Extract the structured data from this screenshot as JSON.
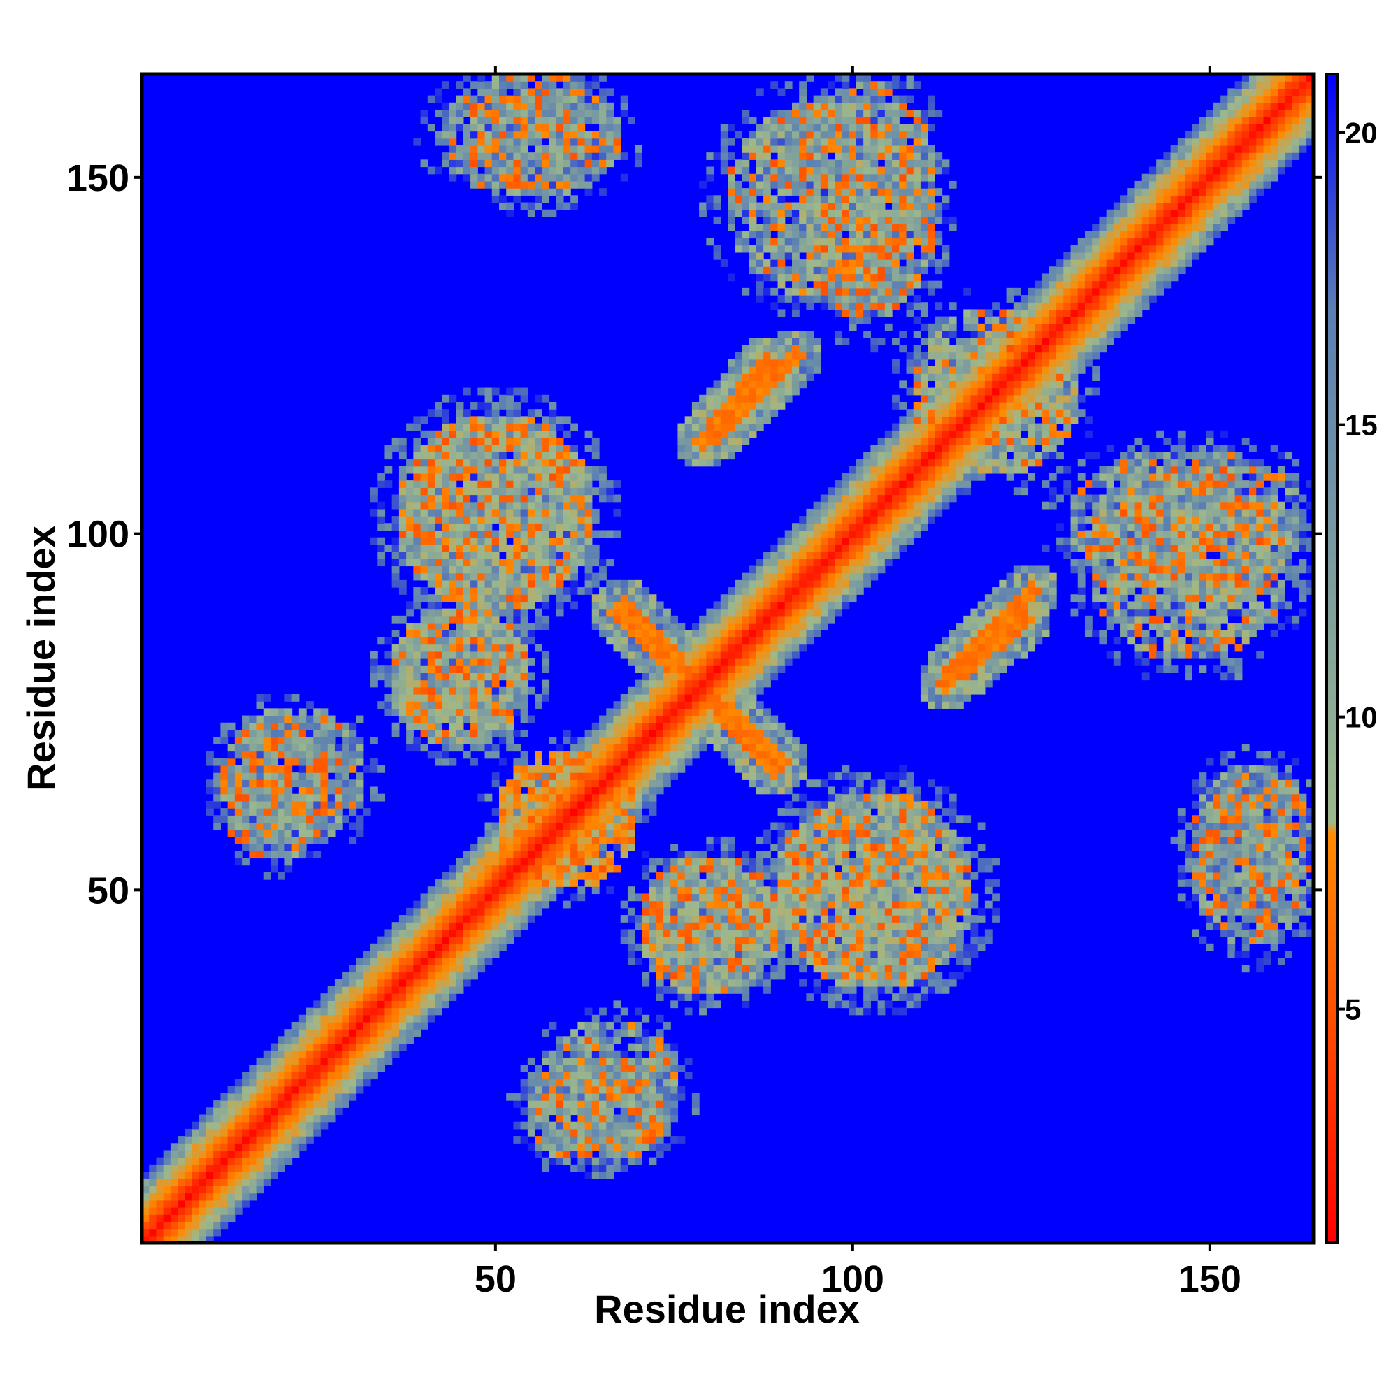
{
  "chart_data": {
    "type": "heatmap",
    "title": "",
    "xlabel": "Residue index",
    "ylabel": "Residue index",
    "n_residues": 164,
    "xlim": [
      1,
      164
    ],
    "ylim": [
      1,
      164
    ],
    "x_ticks": [
      50,
      100,
      150
    ],
    "y_ticks": [
      50,
      100,
      150
    ],
    "x_tick_labels": [
      "50",
      "100",
      "150"
    ],
    "y_tick_labels": [
      "50",
      "100",
      "150"
    ],
    "matrix_symmetric": true,
    "cutoff_value": 21,
    "colorbar": {
      "range": [
        1,
        21
      ],
      "ticks": [
        5,
        10,
        15,
        20
      ],
      "tick_labels": [
        "5",
        "10",
        "15",
        "20"
      ],
      "colors": [
        "#ff0000",
        "#ff8c00",
        "#9db88c",
        "#5a7fb4",
        "#0000ff"
      ],
      "stops": [
        0,
        0.35,
        0.55,
        0.8,
        1.0
      ]
    },
    "background_color": "#0000ff",
    "features": [
      {
        "label": "diagonal",
        "band": [
          1,
          164
        ],
        "value_min": 1,
        "value_max": 6
      },
      {
        "label": "anti-diagonal",
        "x": [
          68,
          89
        ],
        "y": [
          90,
          67
        ],
        "value": 6
      },
      {
        "label": "parallel",
        "x": [
          81,
          92
        ],
        "y": [
          114,
          125
        ],
        "value": 6
      },
      {
        "label": "parallel",
        "x": [
          113,
          124
        ],
        "y": [
          79,
          88
        ],
        "value": 6
      },
      {
        "label": "cluster",
        "x_center": 96,
        "y_center": 147,
        "x_radius": 14,
        "y_radius": 14,
        "value": 14
      },
      {
        "label": "cluster",
        "x_center": 55,
        "y_center": 155,
        "x_radius": 9,
        "y_radius": 7,
        "value": 15
      },
      {
        "label": "cluster",
        "x_center": 50,
        "y_center": 103,
        "x_radius": 14,
        "y_radius": 14,
        "value": 14
      },
      {
        "label": "cluster",
        "x_center": 103,
        "y_center": 50,
        "x_radius": 14,
        "y_radius": 14,
        "value": 14
      },
      {
        "label": "cluster",
        "x_center": 22,
        "y_center": 66,
        "x_radius": 10,
        "y_radius": 10,
        "value": 15
      },
      {
        "label": "cluster",
        "x_center": 64,
        "y_center": 19,
        "x_radius": 10,
        "y_radius": 8,
        "value": 15
      },
      {
        "label": "cluster",
        "x_center": 147,
        "y_center": 102,
        "x_radius": 17,
        "y_radius": 10,
        "value": 15
      },
      {
        "label": "cluster",
        "x_center": 156,
        "y_center": 55,
        "x_radius": 9,
        "y_radius": 13,
        "value": 15
      },
      {
        "label": "cluster",
        "x_center": 60,
        "y_center": 60,
        "x_radius": 10,
        "y_radius": 10,
        "value": 9
      },
      {
        "label": "cluster",
        "x_center": 80,
        "y_center": 45,
        "x_radius": 10,
        "y_radius": 10,
        "value": 14
      },
      {
        "label": "cluster",
        "x_center": 45,
        "y_center": 80,
        "x_radius": 10,
        "y_radius": 10,
        "value": 14
      },
      {
        "label": "cluster",
        "x_center": 120,
        "y_center": 120,
        "x_radius": 12,
        "y_radius": 12,
        "value": 13
      }
    ]
  }
}
